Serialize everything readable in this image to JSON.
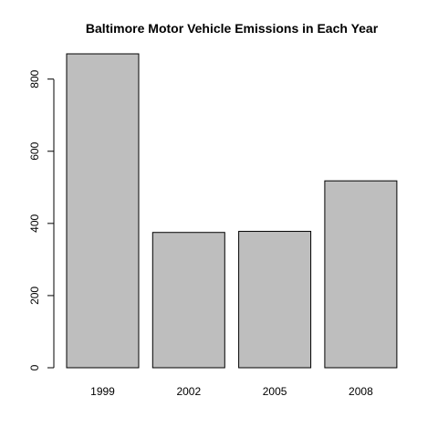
{
  "chart_data": {
    "type": "bar",
    "title": "Baltimore Motor Vehicle Emissions in Each Year",
    "xlabel": "",
    "ylabel": "",
    "categories": [
      "1999",
      "2002",
      "2005",
      "2008"
    ],
    "values": [
      870,
      375,
      378,
      518
    ],
    "ylim": [
      0,
      870
    ],
    "yticks": [
      0,
      200,
      400,
      600,
      800
    ],
    "bar_fill": "#bebebe",
    "bar_stroke": "#000000",
    "grid": false
  }
}
